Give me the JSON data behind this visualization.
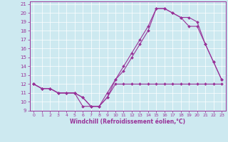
{
  "xlabel": "Windchill (Refroidissement éolien,°C)",
  "background_color": "#cde9f0",
  "line_color": "#993399",
  "grid_color": "#ffffff",
  "xlim": [
    -0.5,
    23.5
  ],
  "ylim": [
    9,
    21.3
  ],
  "xticks": [
    0,
    1,
    2,
    3,
    4,
    5,
    6,
    7,
    8,
    9,
    10,
    11,
    12,
    13,
    14,
    15,
    16,
    17,
    18,
    19,
    20,
    21,
    22,
    23
  ],
  "yticks": [
    9,
    10,
    11,
    12,
    13,
    14,
    15,
    16,
    17,
    18,
    19,
    20,
    21
  ],
  "series1_x": [
    0,
    1,
    2,
    3,
    4,
    5,
    6,
    7,
    8,
    9,
    10,
    11,
    12,
    13,
    14,
    15,
    16,
    17,
    18,
    19,
    20,
    21,
    22,
    23
  ],
  "series1_y": [
    12.0,
    11.5,
    11.5,
    11.0,
    11.0,
    11.0,
    9.5,
    9.5,
    9.5,
    10.5,
    12.0,
    12.0,
    12.0,
    12.0,
    12.0,
    12.0,
    12.0,
    12.0,
    12.0,
    12.0,
    12.0,
    12.0,
    12.0,
    12.0
  ],
  "series2_x": [
    0,
    1,
    2,
    3,
    4,
    5,
    6,
    7,
    8,
    9,
    10,
    11,
    12,
    13,
    14,
    15,
    16,
    17,
    18,
    19,
    20,
    21,
    22,
    23
  ],
  "series2_y": [
    12.0,
    11.5,
    11.5,
    11.0,
    11.0,
    11.0,
    10.5,
    9.5,
    9.5,
    10.5,
    12.5,
    13.5,
    15.0,
    16.5,
    18.0,
    20.5,
    20.5,
    20.0,
    19.5,
    18.5,
    18.5,
    16.5,
    14.5,
    12.5
  ],
  "series3_x": [
    0,
    1,
    2,
    3,
    4,
    5,
    6,
    7,
    8,
    9,
    10,
    11,
    12,
    13,
    14,
    15,
    16,
    17,
    18,
    19,
    20,
    21,
    22,
    23
  ],
  "series3_y": [
    12.0,
    11.5,
    11.5,
    11.0,
    11.0,
    11.0,
    10.5,
    9.5,
    9.5,
    11.0,
    12.5,
    14.0,
    15.5,
    17.0,
    18.5,
    20.5,
    20.5,
    20.0,
    19.5,
    19.5,
    19.0,
    16.5,
    14.5,
    12.5
  ]
}
